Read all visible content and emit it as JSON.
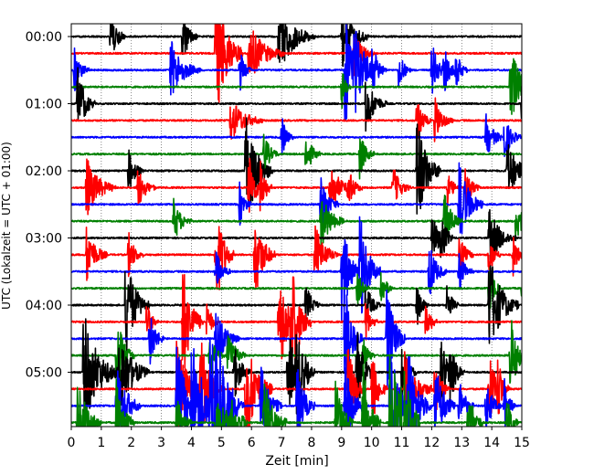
{
  "chart_data": {
    "type": "line",
    "subtype": "helicorder",
    "xlabel": "Zeit  [min]",
    "ylabel": "UTC (Lokalzeit = UTC + 01:00)",
    "xlim": [
      0,
      15
    ],
    "x_ticks": [
      "0",
      "1",
      "2",
      "3",
      "4",
      "5",
      "6",
      "7",
      "8",
      "9",
      "10",
      "11",
      "12",
      "13",
      "14",
      "15"
    ],
    "y_ticks": [
      "00:00",
      "01:00",
      "02:00",
      "03:00",
      "04:00",
      "05:00"
    ],
    "minutes_per_line": 15,
    "line_count": 24,
    "line_colors": [
      "#000000",
      "#ff0000",
      "#0000ff",
      "#008000"
    ],
    "grid": "vertical-dotted",
    "events": [
      [
        [
          1.3,
          0.5,
          2
        ],
        [
          3.7,
          0.5,
          2
        ],
        [
          6.9,
          1.2,
          2.5
        ],
        [
          9.0,
          0.9,
          2.5
        ]
      ],
      [
        [
          4.8,
          0.9,
          5
        ],
        [
          5.9,
          1.2,
          2
        ],
        [
          9.4,
          0.7,
          1.5
        ]
      ],
      [
        [
          0.1,
          0.5,
          1.5
        ],
        [
          3.3,
          1.0,
          2
        ],
        [
          5.6,
          0.4,
          1.5
        ],
        [
          9.1,
          0.8,
          4
        ],
        [
          9.4,
          1.0,
          2
        ],
        [
          10.0,
          0.5,
          1.5
        ],
        [
          10.9,
          0.4,
          1.5
        ],
        [
          12.0,
          0.5,
          2
        ],
        [
          12.4,
          0.5,
          1.5
        ],
        [
          12.8,
          0.4,
          1.5
        ]
      ],
      [
        [
          9.0,
          0.3,
          1.5
        ],
        [
          14.6,
          0.8,
          3
        ]
      ],
      [
        [
          0.2,
          0.6,
          2.5
        ],
        [
          9.8,
          0.7,
          2
        ],
        [
          15.0,
          0.8,
          2
        ]
      ],
      [
        [
          5.3,
          1.1,
          1.5
        ],
        [
          11.5,
          0.5,
          1.5
        ],
        [
          12.1,
          0.6,
          1.5
        ]
      ],
      [
        [
          7.0,
          0.4,
          1.5
        ],
        [
          13.8,
          0.6,
          1.5
        ],
        [
          14.4,
          0.6,
          1.5
        ]
      ],
      [
        [
          6.4,
          0.5,
          1.5
        ],
        [
          7.8,
          0.5,
          1.5
        ],
        [
          9.6,
          0.5,
          1.5
        ]
      ],
      [
        [
          1.9,
          0.5,
          1.5
        ],
        [
          5.8,
          0.9,
          4
        ],
        [
          11.5,
          0.8,
          4
        ],
        [
          14.5,
          0.9,
          2
        ]
      ],
      [
        [
          0.5,
          1.0,
          2
        ],
        [
          2.2,
          0.6,
          1.5
        ],
        [
          5.9,
          0.5,
          2.5
        ],
        [
          6.3,
          0.4,
          2
        ],
        [
          8.6,
          0.7,
          2
        ],
        [
          9.2,
          0.5,
          1.5
        ],
        [
          10.7,
          0.6,
          1.5
        ],
        [
          12.5,
          0.4,
          1.5
        ],
        [
          13.1,
          0.5,
          1.5
        ]
      ],
      [
        [
          5.6,
          0.4,
          1.5
        ],
        [
          8.3,
          0.6,
          2
        ],
        [
          12.9,
          0.8,
          3
        ]
      ],
      [
        [
          3.4,
          0.6,
          1.5
        ],
        [
          8.3,
          0.8,
          2
        ],
        [
          12.4,
          0.6,
          2
        ],
        [
          14.8,
          0.5,
          1.5
        ]
      ],
      [
        [
          12.0,
          0.7,
          1.5
        ],
        [
          12.3,
          0.4,
          1.5
        ],
        [
          13.9,
          0.9,
          2
        ]
      ],
      [
        [
          0.5,
          0.7,
          2
        ],
        [
          1.9,
          0.5,
          1.5
        ],
        [
          4.8,
          0.6,
          4
        ],
        [
          6.1,
          0.7,
          3
        ],
        [
          8.1,
          0.8,
          2
        ],
        [
          12.9,
          0.5,
          1.5
        ],
        [
          13.9,
          0.4,
          1.5
        ],
        [
          14.7,
          0.4,
          1.5
        ]
      ],
      [
        [
          4.8,
          0.5,
          1.5
        ],
        [
          9.0,
          0.6,
          4
        ],
        [
          9.6,
          0.7,
          4
        ],
        [
          11.9,
          0.6,
          2
        ],
        [
          12.9,
          0.5,
          1.5
        ]
      ],
      [
        [
          9.5,
          0.4,
          1.5
        ],
        [
          10.3,
          0.4,
          1.5
        ],
        [
          13.9,
          0.4,
          2
        ],
        [
          15.0,
          0.6,
          2
        ]
      ],
      [
        [
          1.8,
          0.8,
          3.5
        ],
        [
          7.8,
          0.5,
          1.5
        ],
        [
          9.8,
          0.5,
          1.5
        ],
        [
          11.5,
          0.4,
          1.5
        ],
        [
          12.5,
          0.4,
          1.5
        ],
        [
          13.9,
          1.0,
          3.5
        ]
      ],
      [
        [
          2.5,
          0.4,
          1.5
        ],
        [
          3.7,
          0.7,
          4
        ],
        [
          4.5,
          0.4,
          1.5
        ],
        [
          6.9,
          0.7,
          4
        ],
        [
          7.3,
          0.7,
          4
        ],
        [
          9.8,
          0.4,
          1.5
        ],
        [
          11.8,
          0.4,
          1.5
        ]
      ],
      [
        [
          2.6,
          0.5,
          2
        ],
        [
          4.8,
          0.8,
          2
        ],
        [
          9.1,
          0.6,
          4
        ],
        [
          10.5,
          0.6,
          4
        ]
      ],
      [
        [
          1.5,
          0.6,
          3
        ],
        [
          4.6,
          0.5,
          1.5
        ],
        [
          5.2,
          0.6,
          2
        ],
        [
          9.7,
          0.4,
          1.5
        ],
        [
          14.6,
          0.6,
          3
        ]
      ],
      [
        [
          0.4,
          1.2,
          4
        ],
        [
          1.6,
          1.0,
          3
        ],
        [
          5.4,
          0.6,
          2
        ],
        [
          7.2,
          0.7,
          3
        ],
        [
          7.5,
          0.6,
          3
        ],
        [
          9.5,
          0.6,
          3
        ],
        [
          11.0,
          0.5,
          2
        ],
        [
          12.3,
          0.6,
          2.5
        ],
        [
          12.6,
          0.5,
          2
        ]
      ],
      [
        [
          3.5,
          1.0,
          3
        ],
        [
          4.3,
          0.8,
          3
        ],
        [
          5.8,
          0.9,
          4
        ],
        [
          9.2,
          0.6,
          3
        ],
        [
          10.0,
          0.5,
          3
        ],
        [
          11.1,
          1.0,
          2.5
        ],
        [
          12.1,
          0.5,
          2
        ],
        [
          13.9,
          0.5,
          3
        ],
        [
          14.2,
          0.4,
          2
        ]
      ],
      [
        [
          1.5,
          0.8,
          3
        ],
        [
          3.5,
          0.9,
          4
        ],
        [
          4.0,
          1.0,
          4
        ],
        [
          4.6,
          1.0,
          5
        ],
        [
          4.75,
          1.0,
          3
        ],
        [
          6.3,
          0.7,
          3
        ],
        [
          7.5,
          0.6,
          3
        ],
        [
          9.1,
          0.7,
          3
        ],
        [
          10.6,
          0.8,
          4
        ],
        [
          11.2,
          0.8,
          4
        ],
        [
          12.1,
          0.7,
          3
        ],
        [
          12.9,
          0.5,
          2
        ],
        [
          13.8,
          0.5,
          2
        ],
        [
          14.4,
          0.4,
          2
        ]
      ],
      [
        [
          0.2,
          0.8,
          3
        ],
        [
          1.5,
          0.6,
          3
        ],
        [
          3.5,
          0.5,
          2
        ],
        [
          4.8,
          1.0,
          2
        ],
        [
          5.3,
          0.6,
          2
        ],
        [
          6.4,
          0.8,
          3
        ],
        [
          8.8,
          0.6,
          3
        ],
        [
          9.7,
          0.6,
          4
        ],
        [
          10.6,
          1.0,
          5
        ],
        [
          11.0,
          0.6,
          3
        ],
        [
          13.2,
          0.5,
          3
        ],
        [
          14.5,
          0.4,
          2
        ]
      ]
    ]
  }
}
